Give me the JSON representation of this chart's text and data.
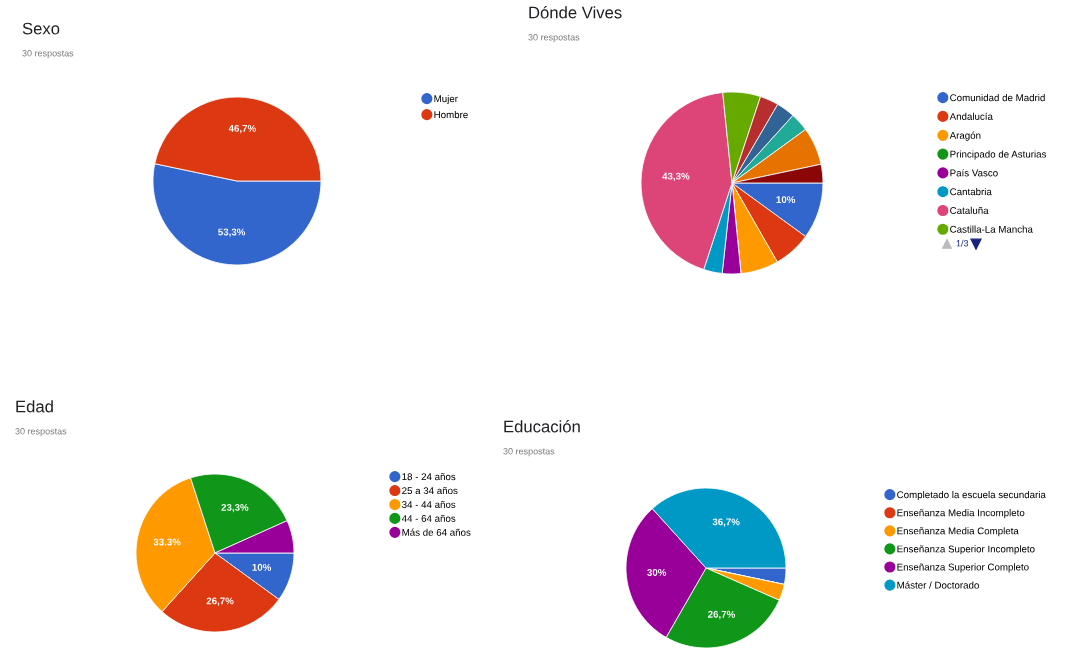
{
  "chart_data": [
    {
      "type": "pie",
      "title": "Sexo",
      "subtitle": "30 respostas",
      "categories": [
        "Mujer",
        "Hombre"
      ],
      "values": [
        53.3,
        46.7
      ],
      "colors": [
        "#3366cc",
        "#dc3912"
      ],
      "value_labels": [
        "53,3%",
        "46,7%"
      ],
      "legend": "right"
    },
    {
      "type": "pie",
      "title": "Dónde Vives",
      "subtitle": "30 respostas",
      "categories": [
        "Comunidad de Madrid",
        "Andalucía",
        "Aragón",
        "Principado de Asturias",
        "País Vasco",
        "Cantabria",
        "Cataluña",
        "Castilla-La Mancha",
        null,
        null,
        null,
        null,
        null
      ],
      "values": [
        10,
        6.7,
        6.7,
        0,
        3.3,
        3.3,
        43.3,
        6.7,
        3.3,
        3.3,
        3.3,
        6.7,
        3.3
      ],
      "colors": [
        "#3366cc",
        "#dc3912",
        "#ff9900",
        "#109618",
        "#990099",
        "#0099c6",
        "#dd4477",
        "#66aa00",
        "#b82e2e",
        "#316395",
        "#22aa99",
        "#e67300",
        "#8b0707"
      ],
      "value_labels": [
        "10%",
        null,
        null,
        null,
        null,
        null,
        "43,3%",
        null,
        null,
        null,
        null,
        null,
        null
      ],
      "legend": "right",
      "annotations": [
        "1/3"
      ]
    },
    {
      "type": "pie",
      "title": "Edad",
      "subtitle": "30 respostas",
      "categories": [
        "18 - 24 años",
        "25 a 34 años",
        "34 - 44 años",
        "44 - 64 años",
        "Más de 64 años"
      ],
      "values": [
        10,
        26.7,
        33.3,
        23.3,
        6.7
      ],
      "colors": [
        "#3366cc",
        "#dc3912",
        "#ff9900",
        "#109618",
        "#990099"
      ],
      "value_labels": [
        "10%",
        "26,7%",
        "33,3%",
        "23,3%",
        null
      ],
      "legend": "right"
    },
    {
      "type": "pie",
      "title": "Educación",
      "subtitle": "30 respostas",
      "categories": [
        "Completado la escuela secundaria",
        "Enseñanza Media Incompleto",
        "Enseñanza Media Completa",
        "Enseñanza Superior Incompleto",
        "Enseñanza Superior Completo",
        "Máster / Doctorado"
      ],
      "values": [
        3.3,
        0,
        3.3,
        26.7,
        30,
        36.7
      ],
      "colors": [
        "#3366cc",
        "#dc3912",
        "#ff9900",
        "#109618",
        "#990099",
        "#0099c6"
      ],
      "value_labels": [
        null,
        null,
        null,
        "26,7%",
        "30%",
        "36,7%"
      ],
      "legend": "right"
    }
  ]
}
